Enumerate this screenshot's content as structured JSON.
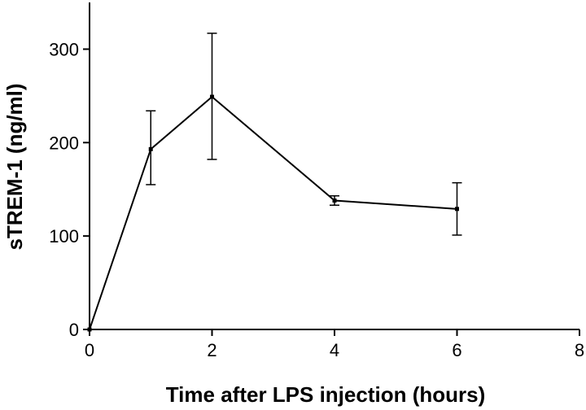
{
  "chart_data": {
    "type": "line",
    "xlabel": "Time after LPS injection (hours)",
    "ylabel": "sTREM-1 (ng/ml)",
    "xlim": [
      0,
      8
    ],
    "ylim": [
      0,
      350
    ],
    "x_ticks": [
      0,
      2,
      4,
      6,
      8
    ],
    "y_ticks": [
      0,
      100,
      200,
      300
    ],
    "grid": false,
    "series": [
      {
        "x": [
          0,
          1,
          2,
          4,
          6
        ],
        "y": [
          0,
          193,
          249,
          138,
          129
        ],
        "err_low": [
          0,
          155,
          182,
          133,
          101
        ],
        "err_high": [
          0,
          234,
          317,
          143,
          157
        ],
        "color": "#000000"
      }
    ]
  }
}
